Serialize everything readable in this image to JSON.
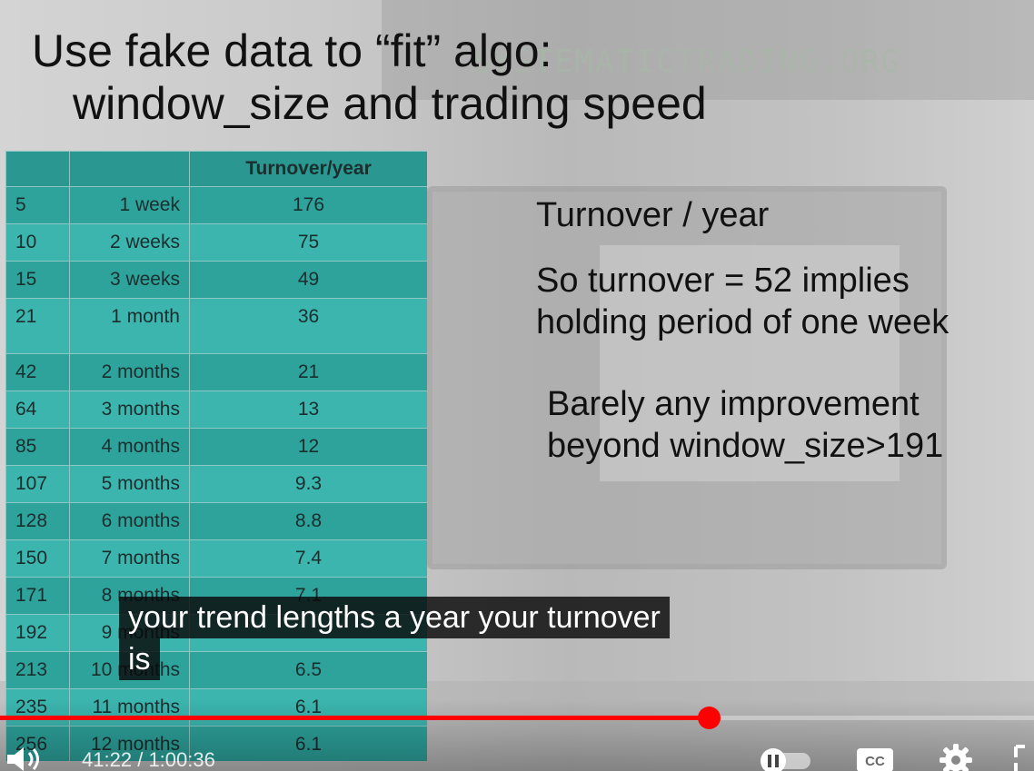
{
  "slide": {
    "title_line1": "Use fake data to “fit” algo:",
    "title_line2": "window_size and trading speed",
    "watermark": "SYSTEMATICTRADING.ORG",
    "table": {
      "headers": [
        "",
        "",
        "Turnover/year"
      ],
      "rows": [
        {
          "window": "5",
          "period": "1 week",
          "turnover": "176"
        },
        {
          "window": "10",
          "period": "2 weeks",
          "turnover": "75"
        },
        {
          "window": "15",
          "period": "3 weeks",
          "turnover": "49"
        },
        {
          "window": "21",
          "period": "1 month",
          "turnover": "36"
        },
        {
          "window": "42",
          "period": "2 months",
          "turnover": "21"
        },
        {
          "window": "64",
          "period": "3 months",
          "turnover": "13"
        },
        {
          "window": "85",
          "period": "4 months",
          "turnover": "12"
        },
        {
          "window": "107",
          "period": "5 months",
          "turnover": "9.3"
        },
        {
          "window": "128",
          "period": "6 months",
          "turnover": "8.8"
        },
        {
          "window": "150",
          "period": "7 months",
          "turnover": "7.4"
        },
        {
          "window": "171",
          "period": "8 months",
          "turnover": "7.1"
        },
        {
          "window": "192",
          "period": "9 months",
          "turnover": ""
        },
        {
          "window": "213",
          "period": "10 months",
          "turnover": "6.5"
        },
        {
          "window": "235",
          "period": "11 months",
          "turnover": "6.1"
        },
        {
          "window": "256",
          "period": "12 months",
          "turnover": "6.1"
        }
      ]
    },
    "notes": [
      "Turnover / year",
      "So turnover = 52 implies holding period of one week",
      "Barely any improvement beyond window_size>191"
    ]
  },
  "captions": {
    "line1": "your trend lengths a year your turnover",
    "line2": "is"
  },
  "player": {
    "progress_fraction": 0.685,
    "buffered_fraction": 0.825,
    "current_time": "41:22",
    "separator": "/",
    "duration": "1:00:36",
    "cc_label": "CC",
    "accent_color": "#ff0000",
    "icons": [
      "volume-icon",
      "pause-icon",
      "cc-icon",
      "gear-icon",
      "fullscreen-icon"
    ]
  }
}
